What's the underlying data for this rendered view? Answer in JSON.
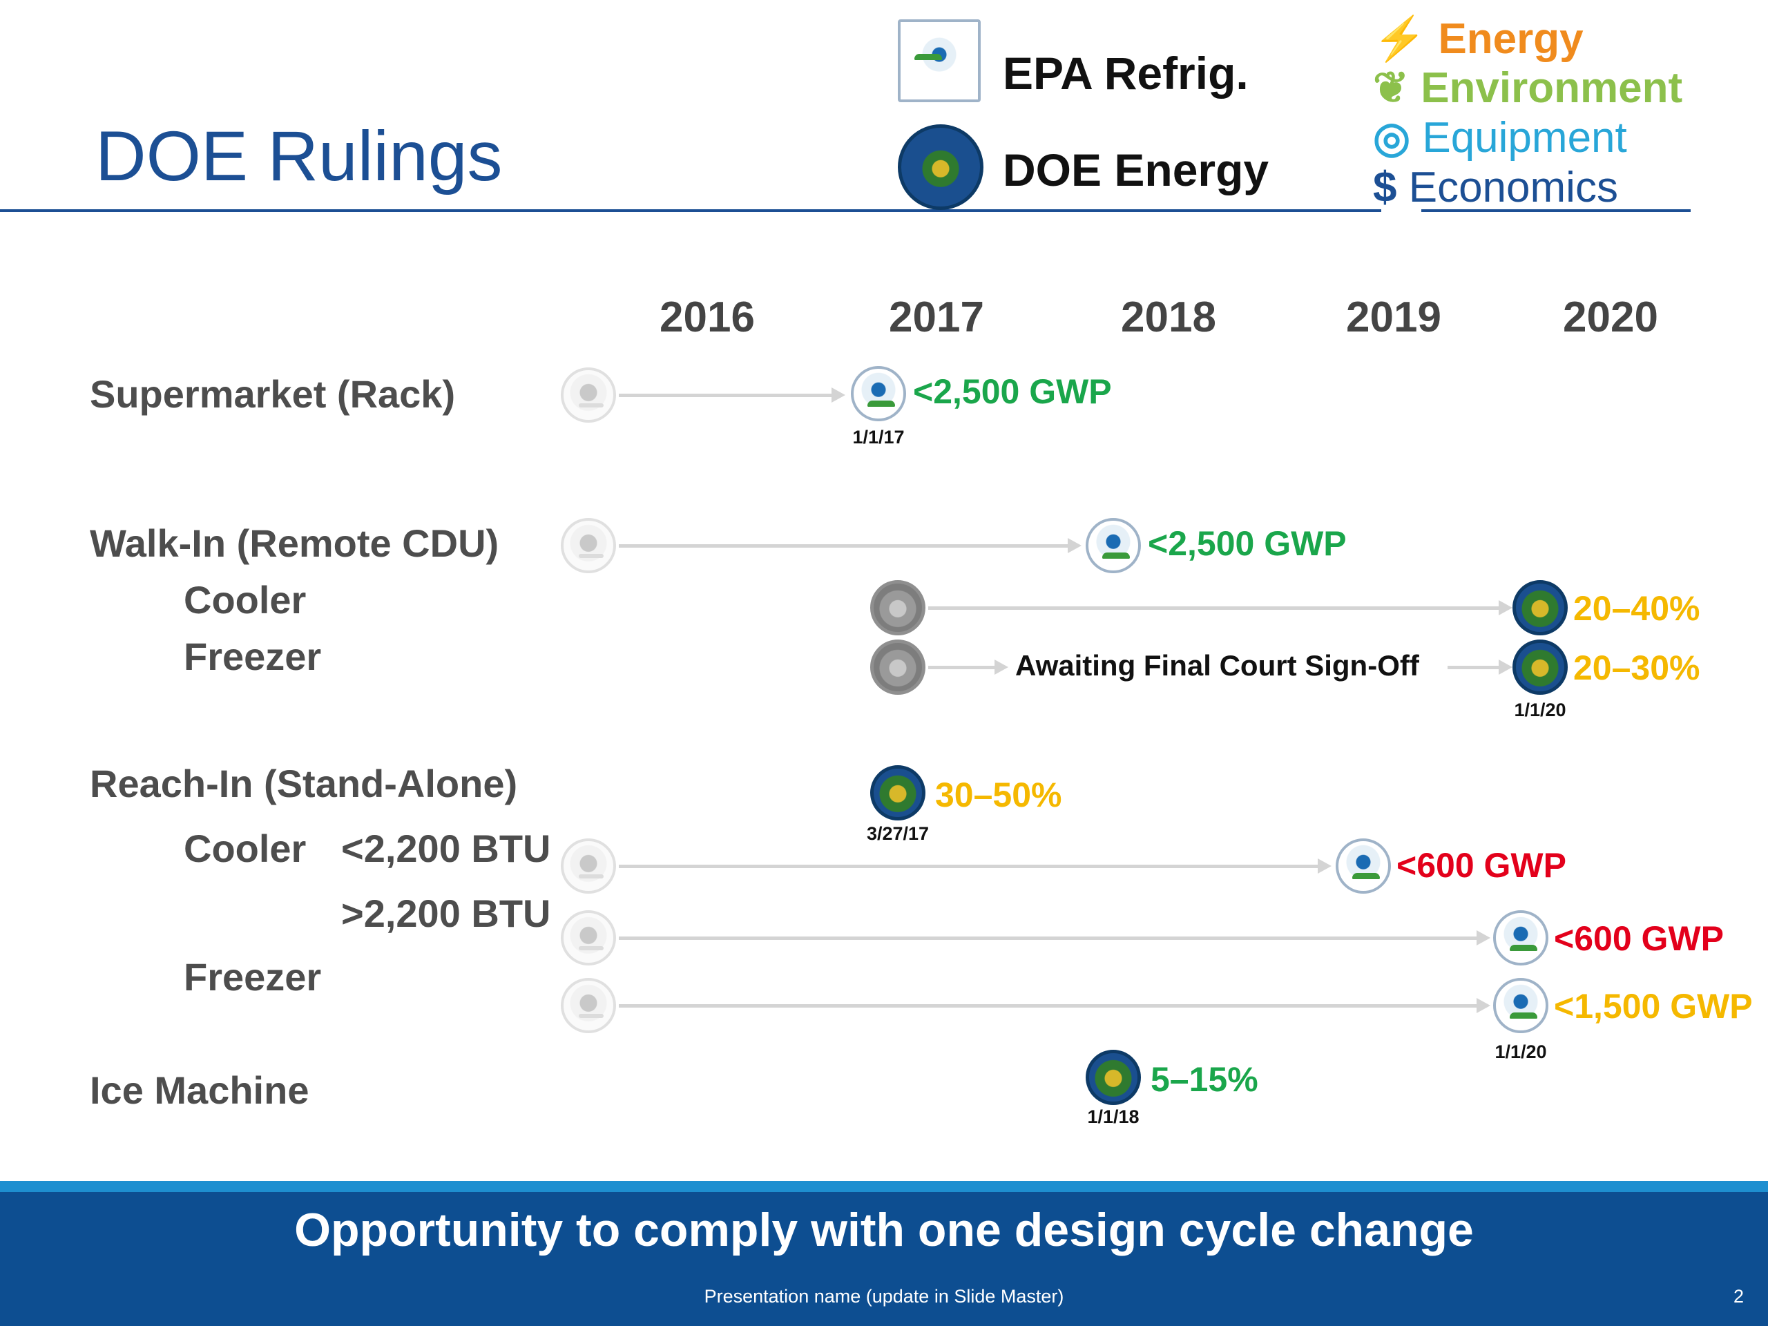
{
  "header": {
    "title": "DOE Rulings",
    "legend": {
      "epa_label": "EPA Refrig.",
      "doe_label": "DOE Energy"
    },
    "four_e": [
      {
        "label": "Energy",
        "color": "#f08b1d",
        "icon": "lightning-icon"
      },
      {
        "label": "Environment",
        "color": "#8cc04b",
        "icon": "leaf-icon"
      },
      {
        "label": "Equipment",
        "color": "#28a6d8",
        "icon": "spiral-icon"
      },
      {
        "label": "Economics",
        "color": "#1c4f94",
        "icon": "dollar-icon"
      }
    ]
  },
  "timeline": {
    "years": [
      "2016",
      "2017",
      "2018",
      "2019",
      "2020"
    ],
    "rows": {
      "supermarket": "Supermarket (Rack)",
      "walkin": "Walk-In (Remote CDU)",
      "walkin_cooler": "Cooler",
      "walkin_freezer": "Freezer",
      "reachin": "Reach-In (Stand-Alone)",
      "reachin_cooler": "Cooler",
      "btu_low": "<2,200 BTU",
      "btu_high": ">2,200 BTU",
      "reachin_freezer": "Freezer",
      "ice": "Ice Machine"
    },
    "annotations": {
      "supermarket_gwp": "<2,500 GWP",
      "supermarket_date": "1/1/17",
      "walkin_gwp": "<2,500 GWP",
      "walkin_cooler_pct": "20–40%",
      "walkin_freezer_pct": "20–30%",
      "walkin_freezer_date": "1/1/20",
      "court": "Awaiting Final Court Sign-Off",
      "reachin_doe_pct": "30–50%",
      "reachin_doe_date": "3/27/17",
      "btu_low_gwp": "<600 GWP",
      "btu_high_gwp": "<600 GWP",
      "freezer_gwp": "<1,500 GWP",
      "freezer_date": "1/1/20",
      "ice_pct": "5–15%",
      "ice_date": "1/1/18"
    },
    "colors": {
      "green": "#1aa64b",
      "gold": "#f5b800",
      "red": "#e3001b",
      "gray_arrow": "#d4d4d4"
    }
  },
  "footer": {
    "banner": "Opportunity to comply with one design cycle change",
    "presentation_name": "Presentation name (update in Slide Master)",
    "page_number": "2"
  }
}
